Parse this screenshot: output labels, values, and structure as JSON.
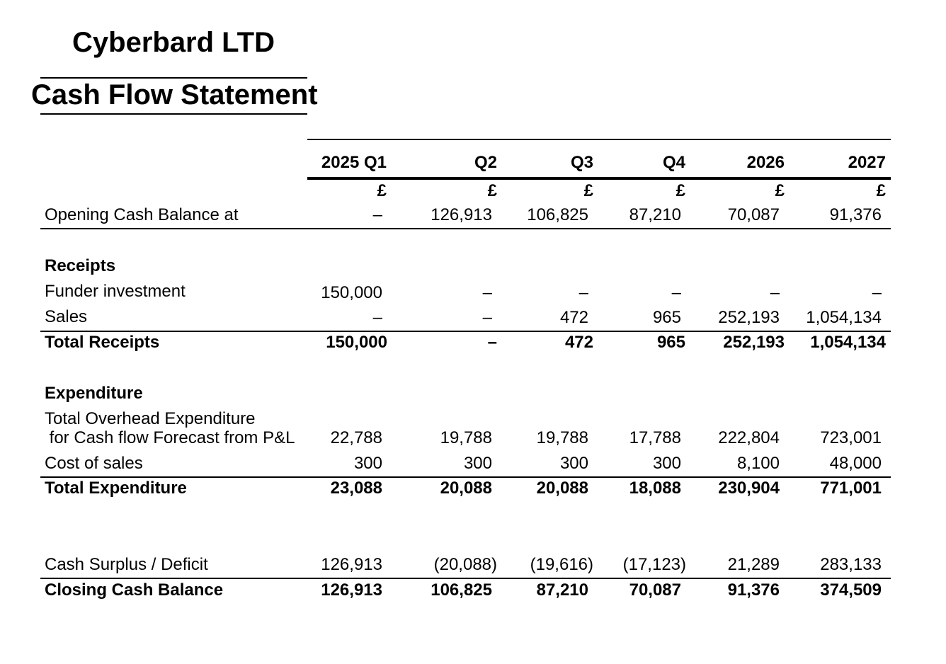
{
  "company": "Cyberbard LTD",
  "title": "Cash Flow Statement",
  "columns": [
    "2025 Q1",
    "Q2",
    "Q3",
    "Q4",
    "2026",
    "2027"
  ],
  "currency": "£",
  "rows": {
    "opening": {
      "label": "Opening Cash Balance at",
      "values": [
        "–",
        "126,913",
        "106,825",
        "87,210",
        "70,087",
        "91,376"
      ]
    },
    "receipts_heading": "Receipts",
    "funder": {
      "label": "Funder investment",
      "values": [
        "150,000",
        "–",
        "–",
        "–",
        "–",
        "–"
      ]
    },
    "sales": {
      "label": "Sales",
      "values": [
        "–",
        "–",
        "472",
        "965",
        "252,193",
        "1,054,134"
      ]
    },
    "total_receipts": {
      "label": "Total Receipts",
      "values": [
        "150,000",
        "–",
        "472",
        "965",
        "252,193",
        "1,054,134"
      ]
    },
    "expenditure_heading": "Expenditure",
    "overhead": {
      "label_line1": "Total Overhead Expenditure",
      "label_line2": " for Cash flow Forecast from P&L",
      "values": [
        "22,788",
        "19,788",
        "19,788",
        "17,788",
        "222,804",
        "723,001"
      ]
    },
    "cost_of_sales": {
      "label": "Cost of sales",
      "values": [
        "300",
        "300",
        "300",
        "300",
        "8,100",
        "48,000"
      ]
    },
    "total_expenditure": {
      "label": "Total Expenditure",
      "values": [
        "23,088",
        "20,088",
        "20,088",
        "18,088",
        "230,904",
        "771,001"
      ]
    },
    "surplus": {
      "label": "Cash Surplus / Deficit",
      "values": [
        "126,913",
        "(20,088)",
        "(19,616)",
        "(17,123)",
        "21,289",
        "283,133"
      ]
    },
    "closing": {
      "label": "Closing Cash Balance",
      "values": [
        "126,913",
        "106,825",
        "87,210",
        "70,087",
        "91,376",
        "374,509"
      ]
    }
  }
}
